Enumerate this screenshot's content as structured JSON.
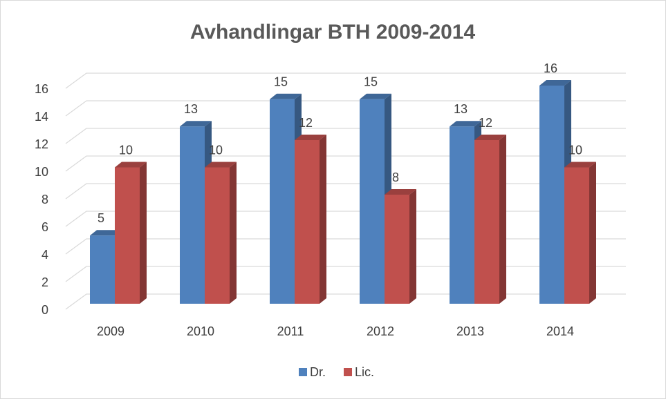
{
  "chart_data": {
    "type": "bar3d",
    "title": "Avhandlingar BTH 2009-2014",
    "categories": [
      "2009",
      "2010",
      "2011",
      "2012",
      "2013",
      "2014"
    ],
    "series": [
      {
        "name": "Dr.",
        "color": "#4f81bd",
        "values": [
          5,
          13,
          15,
          15,
          13,
          16
        ]
      },
      {
        "name": "Lic.",
        "color": "#c0504d",
        "values": [
          10,
          10,
          12,
          8,
          12,
          10
        ]
      }
    ],
    "ylim": [
      0,
      16
    ],
    "yticks": [
      0,
      2,
      4,
      6,
      8,
      10,
      12,
      14,
      16
    ],
    "grid": true,
    "legend": "bottom"
  }
}
